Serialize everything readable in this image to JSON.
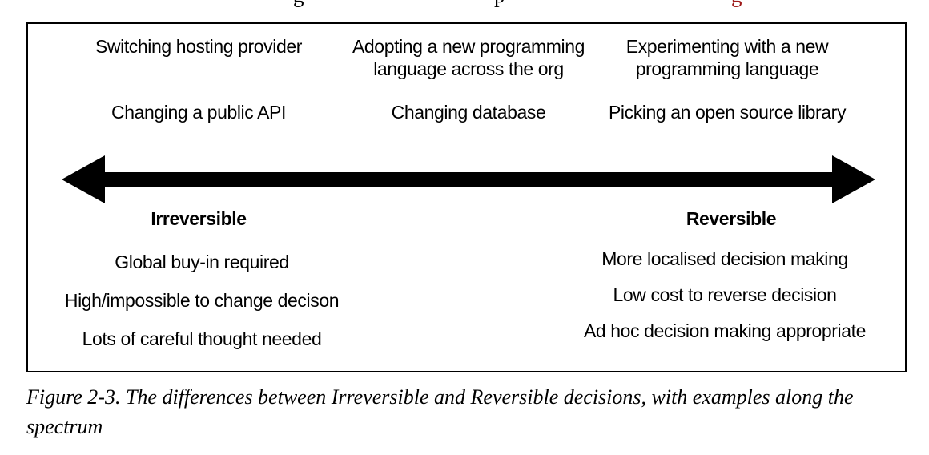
{
  "colors": {
    "ink": "#000000",
    "link_red": "#9e1a1a"
  },
  "cropped_line": {
    "fragments": [
      {
        "glyph": "g"
      },
      {
        "glyph": "p"
      },
      {
        "glyph": "g"
      }
    ]
  },
  "figure": {
    "examples_top": [
      "Switching hosting provider",
      "Adopting a new programming language across the org",
      "Experimenting with a new programming language"
    ],
    "examples_bottom": [
      "Changing a public API",
      "Changing database",
      "Picking an open source library"
    ],
    "left_label": "Irreversible",
    "right_label": "Reversible",
    "left_traits": [
      "Global buy-in required",
      "High/impossible to change decison",
      "Lots of careful thought needed"
    ],
    "right_traits": [
      "More localised decision making",
      "Low cost to reverse decision",
      "Ad hoc decision making appropriate"
    ]
  },
  "caption": {
    "text": "Figure 2-3. The differences between Irreversible and Reversible decisions, with examples along the spectrum"
  }
}
